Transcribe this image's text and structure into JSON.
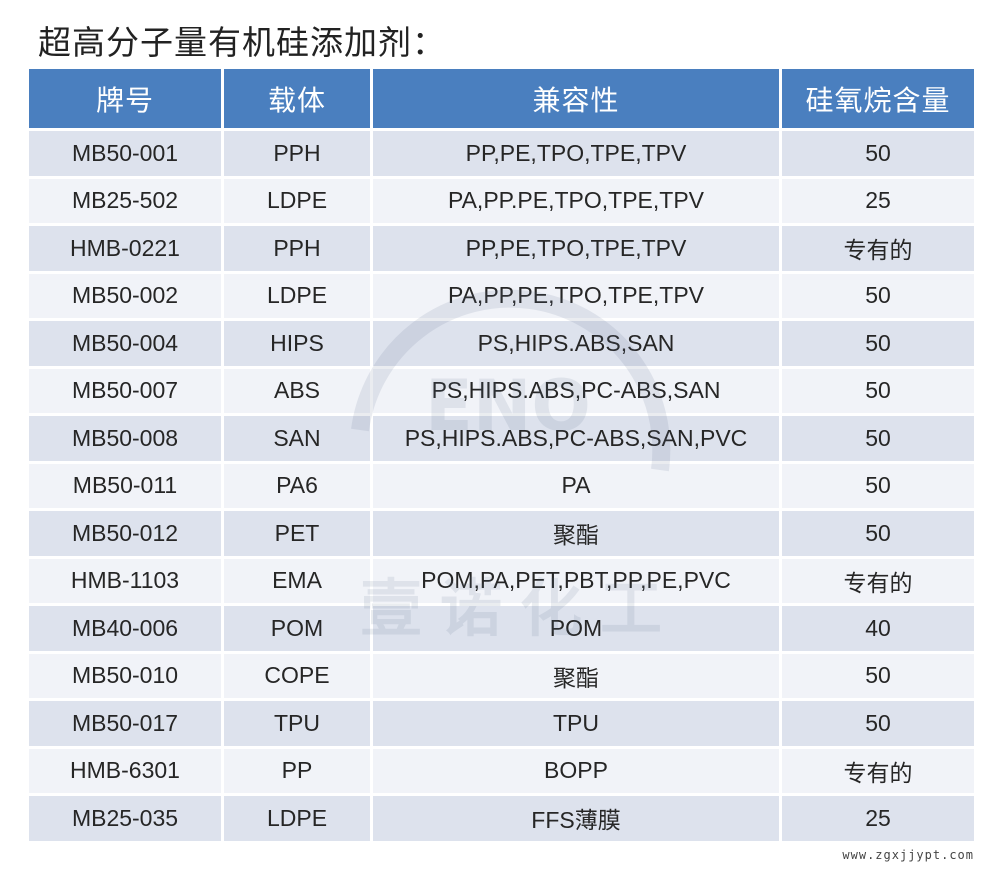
{
  "title": "超高分子量有机硅添加剂：",
  "table": {
    "headers": [
      "牌号",
      "载体",
      "兼容性",
      "硅氧烷含量"
    ],
    "rows": [
      [
        "MB50-001",
        "PPH",
        "PP,PE,TPO,TPE,TPV",
        "50"
      ],
      [
        "MB25-502",
        "LDPE",
        "PA,PP.PE,TPO,TPE,TPV",
        "25"
      ],
      [
        "HMB-0221",
        "PPH",
        "PP,PE,TPO,TPE,TPV",
        "专有的"
      ],
      [
        "MB50-002",
        "LDPE",
        "PA,PP,PE,TPO,TPE,TPV",
        "50"
      ],
      [
        "MB50-004",
        "HIPS",
        "PS,HIPS.ABS,SAN",
        "50"
      ],
      [
        "MB50-007",
        "ABS",
        "PS,HIPS.ABS,PC-ABS,SAN",
        "50"
      ],
      [
        "MB50-008",
        "SAN",
        "PS,HIPS.ABS,PC-ABS,SAN,PVC",
        "50"
      ],
      [
        "MB50-011",
        "PA6",
        "PA",
        "50"
      ],
      [
        "MB50-012",
        "PET",
        "聚酯",
        "50"
      ],
      [
        "HMB-1103",
        "EMA",
        "POM,PA,PET,PBT,PP,PE,PVC",
        "专有的"
      ],
      [
        "MB40-006",
        "POM",
        "POM",
        "40"
      ],
      [
        "MB50-010",
        "COPE",
        "聚酯",
        "50"
      ],
      [
        "MB50-017",
        "TPU",
        "TPU",
        "50"
      ],
      [
        "HMB-6301",
        "PP",
        "BOPP",
        "专有的"
      ],
      [
        "MB25-035",
        "LDPE",
        "FFS薄膜",
        "25"
      ]
    ]
  },
  "watermark": {
    "text": "壹诺化工",
    "letters": "ENO"
  },
  "site_label": "www.zgxjjypt.com",
  "colors": {
    "header_bg": "#4a7fbf",
    "row_odd": "#dde2ed",
    "row_even": "#f1f3f8"
  }
}
